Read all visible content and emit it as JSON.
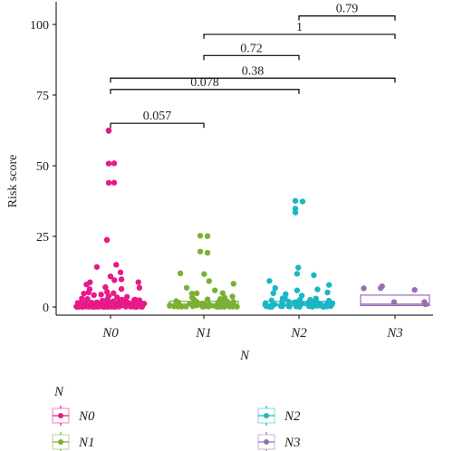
{
  "chart_data": {
    "type": "scatter",
    "xlabel": "N",
    "ylabel": "Risk score",
    "ylim": [
      0,
      107
    ],
    "yticks": [
      "0",
      "25",
      "50",
      "75",
      "100"
    ],
    "categories": [
      "N0",
      "N1",
      "N2",
      "N3"
    ],
    "colors": {
      "N0": "#e8198b",
      "N1": "#7ab135",
      "N2": "#1bb6c4",
      "N3": "#9b6eb4"
    },
    "boxes": [
      {
        "group": "N0",
        "q1": 0.5,
        "median": 1.0,
        "q3": 2.0
      },
      {
        "group": "N1",
        "q1": 0.5,
        "median": 1.0,
        "q3": 2.0
      },
      {
        "group": "N2",
        "q1": 0.5,
        "median": 1.0,
        "q3": 2.0
      },
      {
        "group": "N3",
        "q1": 0.5,
        "median": 1.0,
        "q3": 4.2
      }
    ],
    "outliers": {
      "N0": [
        62.5,
        62.3,
        51.0,
        51.0,
        44.0,
        44.0,
        24.0,
        23.5,
        15.0,
        14.0,
        12.5,
        11.0,
        10.0,
        9.5,
        9.0,
        8.5,
        8.0,
        7.0,
        7.0,
        6.5,
        6.0,
        5.5,
        5.0,
        5.0,
        4.5,
        4.5,
        4.0,
        4.0,
        3.5,
        3.5,
        3.0,
        3.0,
        3.0,
        2.5,
        2.5
      ],
      "N1": [
        25.0,
        25.0,
        19.5,
        19.5,
        12.0,
        11.5,
        9.0,
        8.0,
        7.0,
        6.0,
        5.0,
        5.0,
        4.5,
        4.0,
        3.5,
        3.0,
        3.0,
        2.5,
        2.5
      ],
      "N2": [
        37.5,
        37.5,
        33.5,
        35.0,
        14.0,
        11.5,
        11.0,
        9.0,
        8.0,
        7.0,
        6.5,
        6.0,
        5.0,
        5.0,
        4.5,
        4.0,
        3.5,
        3.0,
        3.0,
        2.5
      ],
      "N3": [
        7.5,
        6.5,
        6.5,
        6.0,
        2.0,
        1.5,
        1.0
      ]
    },
    "comparisons": [
      {
        "from": "N0",
        "to": "N1",
        "p": "0.057"
      },
      {
        "from": "N0",
        "to": "N2",
        "p": "0.078"
      },
      {
        "from": "N0",
        "to": "N3",
        "p": "0.38"
      },
      {
        "from": "N1",
        "to": "N2",
        "p": "0.72"
      },
      {
        "from": "N1",
        "to": "N3",
        "p": "1"
      },
      {
        "from": "N2",
        "to": "N3",
        "p": "0.79"
      }
    ],
    "comparison_heights": [
      65,
      77,
      81,
      89,
      96.5,
      103
    ],
    "legend": {
      "title": "N",
      "position": "bottom",
      "entries": [
        "N0",
        "N1",
        "N2",
        "N3"
      ]
    },
    "grid": false
  }
}
